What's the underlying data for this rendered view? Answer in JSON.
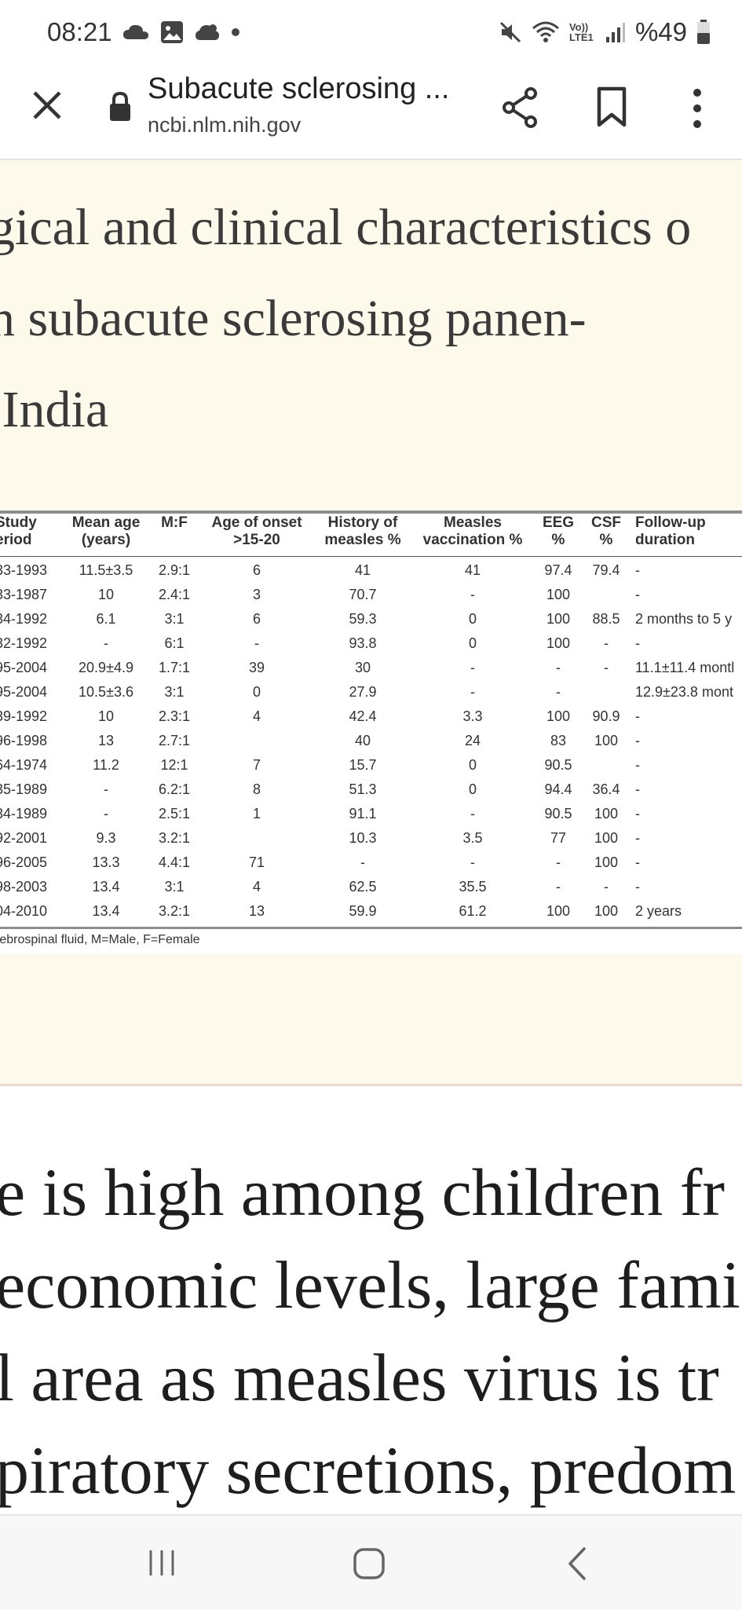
{
  "status_bar": {
    "time": "08:21",
    "left_icons": [
      "cloud-icon",
      "gallery-icon",
      "weather-icon",
      "dot-icon"
    ],
    "network_label": "Vo)) LTE1",
    "battery": "%49",
    "right_icons": [
      "mute-icon",
      "wifi-icon",
      "network-icon",
      "signal-icon",
      "battery-icon"
    ]
  },
  "toolbar": {
    "title": "Subacute sclerosing ...",
    "url": "ncbi.nlm.nih.gov",
    "icons": [
      "close-icon",
      "lock-icon",
      "share-icon",
      "bookmark-icon",
      "more-icon"
    ]
  },
  "figure": {
    "title_lines": [
      "gical and clinical characteristics o",
      "n subacute sclerosing panen-",
      " India"
    ],
    "table": {
      "headers": [
        [
          "Study",
          "eriod"
        ],
        [
          "Mean age",
          "(years)"
        ],
        [
          "M:F",
          ""
        ],
        [
          "Age of onset",
          ">15-20"
        ],
        [
          "History of",
          "measles %"
        ],
        [
          "Measles",
          "vaccination %"
        ],
        [
          "EEG",
          "%"
        ],
        [
          "CSF",
          "%"
        ],
        [
          "Follow-up",
          "duration"
        ]
      ],
      "rows": [
        [
          "33-1993",
          "11.5±3.5",
          "2.9:1",
          "6",
          "41",
          "41",
          "97.4",
          "79.4",
          "-"
        ],
        [
          "33-1987",
          "10",
          "2.4:1",
          "3",
          "70.7",
          "-",
          "100",
          "",
          "-"
        ],
        [
          "34-1992",
          "6.1",
          "3:1",
          "6",
          "59.3",
          "0",
          "100",
          "88.5",
          "2 months to 5 y"
        ],
        [
          "32-1992",
          "-",
          "6:1",
          "-",
          "93.8",
          "0",
          "100",
          "-",
          "-"
        ],
        [
          "95-2004",
          "20.9±4.9",
          "1.7:1",
          "39",
          "30",
          "-",
          "-",
          "-",
          "11.1±11.4 montl"
        ],
        [
          "95-2004",
          "10.5±3.6",
          "3:1",
          "0",
          "27.9",
          "-",
          "-",
          "",
          "12.9±23.8 mont"
        ],
        [
          "39-1992",
          "10",
          "2.3:1",
          "4",
          "42.4",
          "3.3",
          "100",
          "90.9",
          "-"
        ],
        [
          "96-1998",
          "13",
          "2.7:1",
          "",
          "40",
          "24",
          "83",
          "100",
          "-"
        ],
        [
          "64-1974",
          "11.2",
          "12:1",
          "7",
          "15.7",
          "0",
          "90.5",
          "",
          "-"
        ],
        [
          "35-1989",
          "-",
          "6.2:1",
          "8",
          "51.3",
          "0",
          "94.4",
          "36.4",
          "-"
        ],
        [
          "34-1989",
          "-",
          "2.5:1",
          "1",
          "91.1",
          "-",
          "90.5",
          "100",
          "-"
        ],
        [
          "92-2001",
          "9.3",
          "3.2:1",
          "",
          "10.3",
          "3.5",
          "77",
          "100",
          "-"
        ],
        [
          "96-2005",
          "13.3",
          "4.4:1",
          "71",
          "-",
          "-",
          "-",
          "100",
          "-"
        ],
        [
          "98-2003",
          "13.4",
          "3:1",
          "4",
          "62.5",
          "35.5",
          "-",
          "-",
          "-"
        ],
        [
          "04-2010",
          "13.4",
          "3.2:1",
          "13",
          "59.9",
          "61.2",
          "100",
          "100",
          "2 years"
        ]
      ],
      "footnote": "rebrospinal fluid, M=Male, F=Female"
    }
  },
  "article": {
    "lines": [
      "e is high among children fr",
      "economic levels, large fami",
      "l area as measles virus is tr",
      "piratory secretions, predom"
    ]
  },
  "navbar": {
    "icons": [
      "recent-apps-icon",
      "home-icon",
      "back-icon"
    ]
  }
}
